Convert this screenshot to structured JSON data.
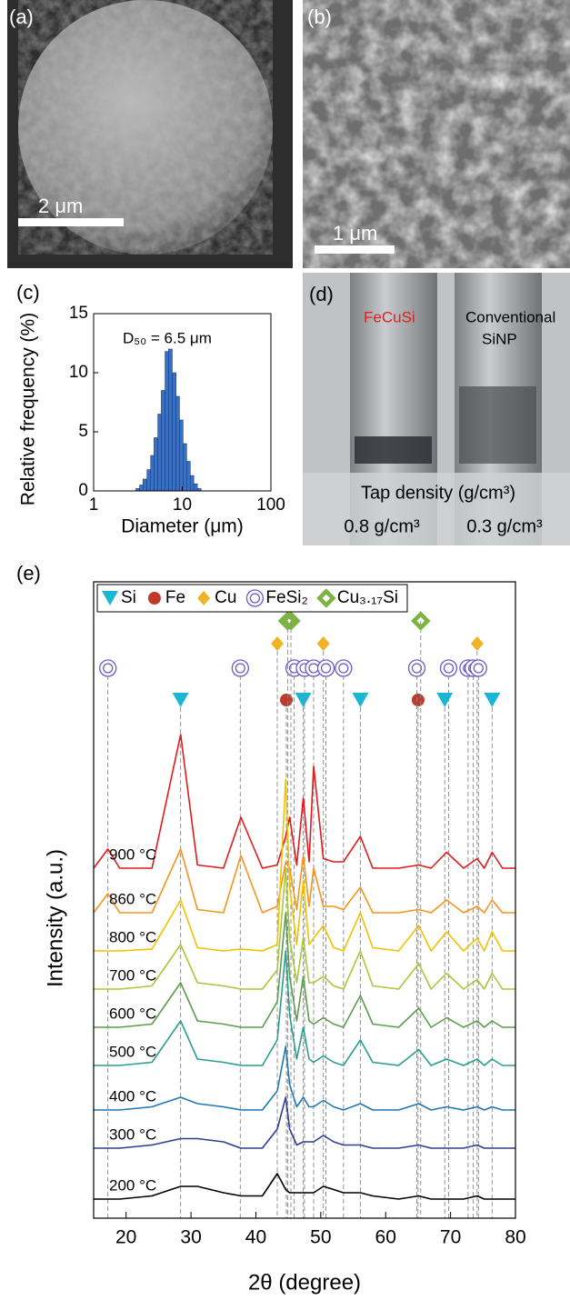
{
  "panels": {
    "a": {
      "label": "(a)",
      "scale_bar": "2 μm"
    },
    "b": {
      "label": "(b)",
      "scale_bar": "1 μm"
    },
    "c": {
      "label": "(c)"
    },
    "d": {
      "label": "(d)",
      "left_sample": "FeCuSi",
      "right_sample": [
        "Conventional",
        "SiNP"
      ],
      "tap_density_title": "Tap density (g/cm³)",
      "left_value": "0.8 g/cm³",
      "right_value": "0.3 g/cm³"
    },
    "e": {
      "label": "(e)"
    }
  },
  "chart_data": [
    {
      "type": "histogram",
      "annotation": "D₅₀ = 6.5 μm",
      "xlabel": "Diameter (μm)",
      "ylabel": "Relative frequency (%)",
      "bins": [
        3.0,
        3.3,
        3.6,
        4.0,
        4.4,
        4.8,
        5.3,
        5.8,
        6.4,
        7.0,
        7.7,
        8.5,
        9.3,
        10.2,
        11.2,
        12.3,
        13.5,
        14.8,
        16.3
      ],
      "values": [
        0.2,
        0.5,
        1,
        1.8,
        3,
        4.5,
        6.5,
        8.5,
        11.8,
        12,
        10,
        8,
        6,
        4,
        2.5,
        1.3,
        0.6,
        0.2
      ],
      "color": "#3b6fc0",
      "xscale": "log",
      "xlim": [
        1,
        100
      ],
      "xticks": [
        1,
        10,
        100
      ],
      "ylim": [
        0,
        15
      ],
      "yticks": [
        0,
        5,
        10,
        15
      ]
    },
    {
      "type": "line",
      "xlabel": "2θ (degree)",
      "ylabel": "Intensity (a.u.)",
      "x": [
        15,
        17.2,
        19,
        24,
        28.4,
        31,
        35,
        37.7,
        41,
        43.3,
        44.6,
        45.2,
        46.3,
        47.3,
        48.2,
        48.9,
        50.4,
        52,
        53.5,
        56.1,
        58,
        62,
        65.1,
        67,
        69.4,
        72,
        74.1,
        75.2,
        76.4,
        78,
        80
      ],
      "series": [
        {
          "name": "900 °C",
          "color": "#e31a1c",
          "values": [
            55,
            58,
            55,
            55,
            76,
            55.5,
            55,
            63,
            55,
            55.5,
            60,
            63,
            55.5,
            66,
            56,
            71,
            56.5,
            56,
            56,
            60,
            55,
            55,
            55.5,
            55,
            57.5,
            55,
            56.5,
            55,
            57.5,
            55,
            55
          ]
        },
        {
          "name": "860 °C",
          "color": "#f7941d",
          "values": [
            48,
            51,
            48,
            48,
            58,
            48.5,
            48,
            57,
            48,
            49,
            56,
            55,
            48.5,
            57,
            49,
            55,
            49,
            49,
            48.5,
            52,
            48,
            48,
            48.5,
            48,
            50,
            48,
            49,
            48,
            50,
            48,
            48
          ]
        },
        {
          "name": "800 °C",
          "color": "#f2c200",
          "values": [
            42,
            42,
            42,
            42.3,
            50,
            42.5,
            42,
            42.3,
            42,
            43,
            69,
            52,
            43,
            53,
            43,
            44,
            46,
            42.5,
            42,
            48,
            42.5,
            42,
            46,
            42,
            45,
            42,
            44,
            42,
            45,
            42,
            42
          ]
        },
        {
          "name": "700 °C",
          "color": "#a6c93a",
          "values": [
            36,
            36,
            36,
            36.5,
            43,
            37,
            36.5,
            36,
            36,
            39,
            55,
            44,
            37,
            44,
            37,
            37,
            38,
            36.5,
            36,
            42,
            36.5,
            36,
            40,
            36,
            38.5,
            36,
            37.5,
            36,
            38.5,
            36,
            36
          ]
        },
        {
          "name": "600 °C",
          "color": "#5a9e4d",
          "values": [
            30,
            30,
            30,
            30.5,
            37,
            31,
            30.5,
            30,
            30,
            34,
            48,
            38,
            31,
            38,
            31,
            30.5,
            31.5,
            30.5,
            30,
            35,
            30.5,
            30,
            33,
            30,
            31.5,
            30,
            31,
            30,
            31,
            30,
            30
          ]
        },
        {
          "name": "500 °C",
          "color": "#2a9d8f",
          "values": [
            24,
            24,
            24,
            24.5,
            31,
            25,
            24.5,
            24,
            24,
            28,
            42,
            32,
            25,
            30,
            25,
            24.5,
            25.5,
            24.5,
            24,
            28,
            24.5,
            24,
            26.5,
            24,
            25,
            24,
            25,
            24,
            25,
            24,
            24
          ]
        },
        {
          "name": "400 °C",
          "color": "#1f77b4",
          "values": [
            17,
            17,
            17,
            17.5,
            19,
            18,
            17.5,
            17,
            17,
            20,
            27,
            21,
            17.5,
            19,
            17.5,
            17.5,
            18.5,
            17.5,
            17,
            18,
            17,
            17,
            18,
            17,
            17.5,
            17,
            17.5,
            17,
            17.5,
            17,
            17
          ]
        },
        {
          "name": "300 °C",
          "color": "#2c3e94",
          "values": [
            11,
            11,
            11,
            11.5,
            12.5,
            12.5,
            12,
            11,
            11,
            14,
            19,
            14,
            11.5,
            12,
            12,
            12,
            13,
            12,
            11.5,
            11.5,
            11,
            11,
            11.5,
            11,
            11,
            11,
            11.5,
            11,
            11,
            11,
            11
          ]
        },
        {
          "name": "200 °C",
          "color": "#000000",
          "values": [
            3,
            3,
            3,
            3.5,
            5,
            5,
            4,
            3.5,
            3.5,
            7,
            4.5,
            4,
            4,
            4,
            4,
            4,
            5,
            4.5,
            4,
            4,
            3.5,
            3,
            3.5,
            3,
            3,
            3,
            3.5,
            3,
            3,
            3,
            3
          ]
        }
      ],
      "xlim": [
        15,
        80
      ],
      "xticks": [
        20,
        30,
        40,
        50,
        60,
        70,
        80
      ],
      "ylim": [
        0,
        100
      ],
      "reference_peaks": [
        {
          "name": "Si",
          "color": "#19b6d6",
          "marker": "triangle",
          "positions": [
            28.4,
            47.3,
            56.1,
            69.1,
            76.4
          ]
        },
        {
          "name": "Fe",
          "color": "#c0392b",
          "marker": "circle",
          "positions": [
            44.7,
            65.0
          ]
        },
        {
          "name": "Cu",
          "color": "#f0b323",
          "marker": "diamond",
          "positions": [
            43.3,
            50.4,
            74.1
          ]
        },
        {
          "name": "FeSi₂",
          "color": "#6a5acd",
          "marker": "double-circle",
          "positions": [
            17.2,
            37.6,
            45.9,
            47.5,
            48.9,
            50.8,
            53.5,
            64.8,
            69.7,
            72.7,
            73.5,
            74.3
          ]
        },
        {
          "name": "Cu₃.₁₇Si",
          "color": "#7cb342",
          "marker": "big-diamond",
          "positions": [
            44.9,
            45.4,
            65.4
          ]
        }
      ]
    }
  ]
}
